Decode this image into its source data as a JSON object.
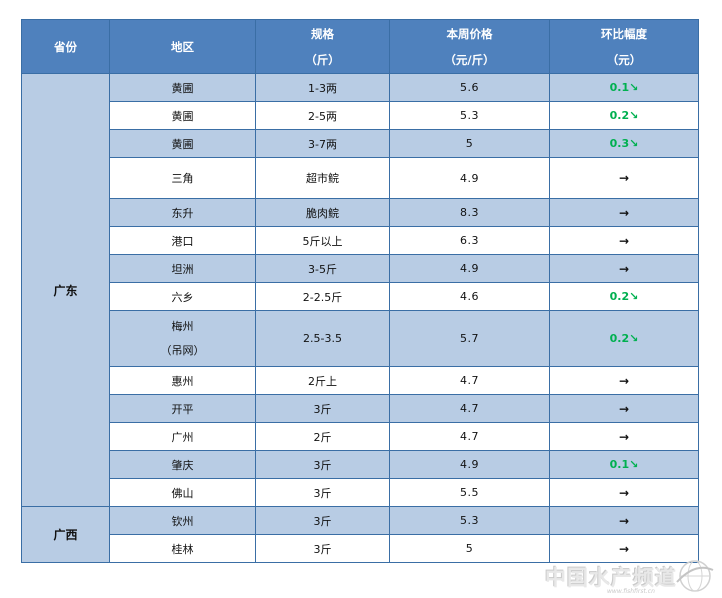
{
  "headers": {
    "province": "省份",
    "region": "地区",
    "spec_line1": "规格",
    "spec_line2": "（斤）",
    "price_line1": "本周价格",
    "price_line2": "（元/斤）",
    "change_line1": "环比幅度",
    "change_line2": "（元）"
  },
  "provinces": {
    "guangdong": "广东",
    "guangxi": "广西"
  },
  "rows": [
    {
      "region": "黄圃",
      "spec": "1-3两",
      "price": "5.6",
      "change": "0.1↘",
      "trend": "down"
    },
    {
      "region": "黄圃",
      "spec": "2-5两",
      "price": "5.3",
      "change": "0.2↘",
      "trend": "down"
    },
    {
      "region": "黄圃",
      "spec": "3-7两",
      "price": "5",
      "change": "0.3↘",
      "trend": "down"
    },
    {
      "region": "三角",
      "spec": "超市鲩",
      "price": "4.9",
      "change": "→",
      "trend": "flat"
    },
    {
      "region": "东升",
      "spec": "脆肉鲩",
      "price": "8.3",
      "change": "→",
      "trend": "flat"
    },
    {
      "region": "港口",
      "spec": "5斤以上",
      "price": "6.3",
      "change": "→",
      "trend": "flat"
    },
    {
      "region": "坦洲",
      "spec": "3-5斤",
      "price": "4.9",
      "change": "→",
      "trend": "flat"
    },
    {
      "region": "六乡",
      "spec": "2-2.5斤",
      "price": "4.6",
      "change": "0.2↘",
      "trend": "down"
    },
    {
      "region_line1": "梅州",
      "region_line2": "（吊网）",
      "spec": "2.5-3.5",
      "price": "5.7",
      "change": "0.2↘",
      "trend": "down"
    },
    {
      "region": "惠州",
      "spec": "2斤上",
      "price": "4.7",
      "change": "→",
      "trend": "flat"
    },
    {
      "region": "开平",
      "spec": "3斤",
      "price": "4.7",
      "change": "→",
      "trend": "flat"
    },
    {
      "region": "广州",
      "spec": "2斤",
      "price": "4.7",
      "change": "→",
      "trend": "flat"
    },
    {
      "region": "肇庆",
      "spec": "3斤",
      "price": "4.9",
      "change": "0.1↘",
      "trend": "down"
    },
    {
      "region": "佛山",
      "spec": "3斤",
      "price": "5.5",
      "change": "→",
      "trend": "flat"
    },
    {
      "region": "钦州",
      "spec": "3斤",
      "price": "5.3",
      "change": "→",
      "trend": "flat"
    },
    {
      "region": "桂林",
      "spec": "3斤",
      "price": "5",
      "change": "→",
      "trend": "flat"
    }
  ],
  "watermark": {
    "text": "中国水产频道",
    "url": "www.fishfirst.cn"
  },
  "colors": {
    "header_bg": "#4f81bd",
    "shade_bg": "#b8cce4",
    "down_change": "#00b050"
  }
}
